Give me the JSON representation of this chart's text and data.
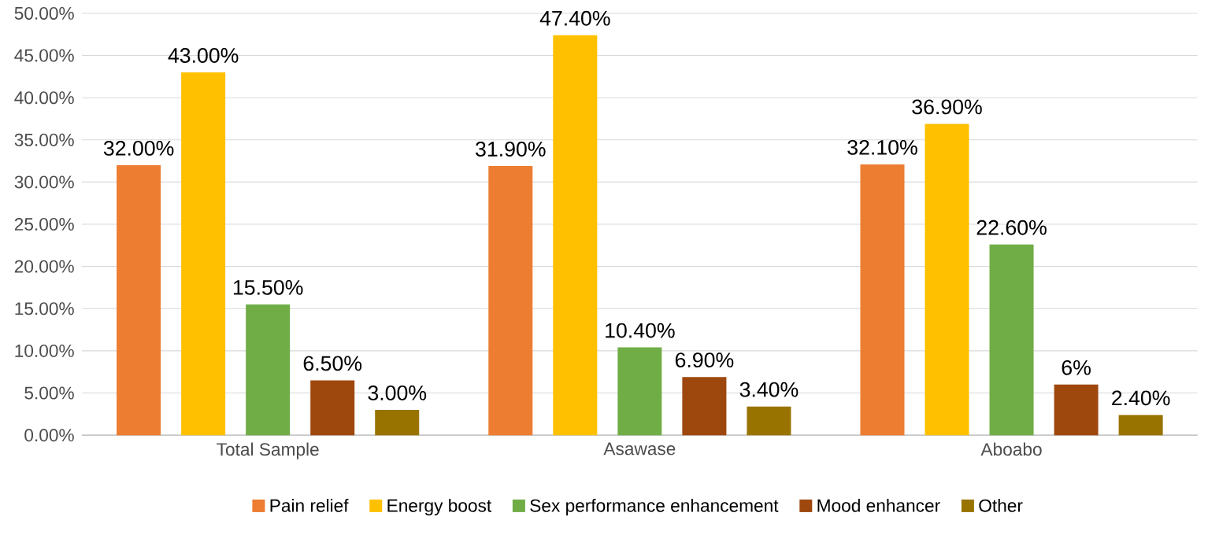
{
  "chart_data": {
    "type": "bar",
    "categories": [
      "Total Sample",
      "Asawase",
      "Aboabo"
    ],
    "series": [
      {
        "name": "Pain relief",
        "color": "#ed7d31",
        "values": [
          32.0,
          31.9,
          32.1
        ],
        "value_labels": [
          "32.00%",
          "31.90%",
          "32.10%"
        ]
      },
      {
        "name": "Energy boost",
        "color": "#ffc000",
        "values": [
          43.0,
          47.4,
          36.9
        ],
        "value_labels": [
          "43.00%",
          "47.40%",
          "36.90%"
        ]
      },
      {
        "name": "Sex performance enhancement",
        "color": "#70ad47",
        "values": [
          15.5,
          10.4,
          22.6
        ],
        "value_labels": [
          "15.50%",
          "10.40%",
          "22.60%"
        ]
      },
      {
        "name": "Mood enhancer",
        "color": "#9e480e",
        "values": [
          6.5,
          6.9,
          6
        ],
        "value_labels": [
          "6.50%",
          "6.90%",
          "6%"
        ]
      },
      {
        "name": "Other",
        "color": "#997300",
        "values": [
          3.0,
          3.4,
          2.4
        ],
        "value_labels": [
          "3.00%",
          "3.40%",
          "2.40%"
        ]
      }
    ],
    "ylim": [
      0,
      50
    ],
    "yticks": [
      {
        "value": 0,
        "label": "0.00%"
      },
      {
        "value": 5,
        "label": "5.00%"
      },
      {
        "value": 10,
        "label": "10.00%"
      },
      {
        "value": 15,
        "label": "15.00%"
      },
      {
        "value": 20,
        "label": "20.00%"
      },
      {
        "value": 25,
        "label": "25.00%"
      },
      {
        "value": 30,
        "label": "30.00%"
      },
      {
        "value": 35,
        "label": "35.00%"
      },
      {
        "value": 40,
        "label": "40.00%"
      },
      {
        "value": 45,
        "label": "45.00%"
      },
      {
        "value": 50,
        "label": "50.00%"
      }
    ],
    "grid": "y",
    "legend": "bottom"
  }
}
